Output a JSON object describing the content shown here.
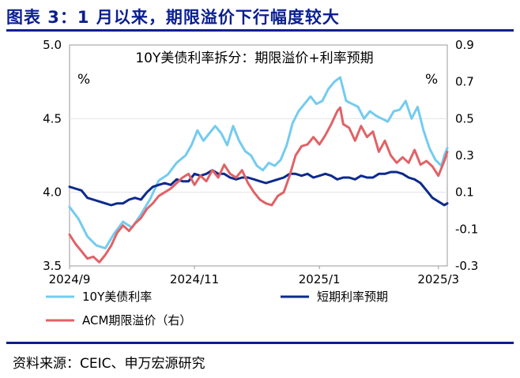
{
  "figure_title": "图表 3：1 月以来，期限溢价下行幅度较大",
  "source": "资料来源：CEIC、申万宏源研究",
  "colors": {
    "brand": "#0a1f8f",
    "ten_year": "#74cbef",
    "short_rate": "#0b2a8c",
    "acm": "#e06266"
  },
  "chart_data": {
    "type": "line",
    "title": "10Y美债利率拆分：期限溢价+利率预期",
    "left_unit": "%",
    "right_unit": "%",
    "x_ticks": [
      "2024/9",
      "2024/11",
      "2025/1",
      "2025/3"
    ],
    "x_tick_index": [
      0,
      42,
      84,
      124
    ],
    "y_left": {
      "min": 3.5,
      "max": 5.0,
      "ticks": [
        "5.0",
        "4.5",
        "4.0",
        "3.5"
      ],
      "tick_values": [
        5.0,
        4.5,
        4.0,
        3.5
      ]
    },
    "y_right": {
      "min": -0.3,
      "max": 0.9,
      "ticks": [
        "0.9",
        "0.7",
        "0.5",
        "0.3",
        "0.1",
        "-0.1",
        "-0.3"
      ],
      "tick_values": [
        0.9,
        0.7,
        0.5,
        0.3,
        0.1,
        -0.1,
        -0.3
      ]
    },
    "series": [
      {
        "name": "10Y美债利率",
        "axis": "left",
        "color": "#74cbef",
        "anchors": [
          [
            0,
            3.9
          ],
          [
            3,
            3.82
          ],
          [
            6,
            3.7
          ],
          [
            9,
            3.64
          ],
          [
            12,
            3.62
          ],
          [
            15,
            3.72
          ],
          [
            18,
            3.8
          ],
          [
            21,
            3.76
          ],
          [
            24,
            3.85
          ],
          [
            27,
            3.95
          ],
          [
            30,
            4.08
          ],
          [
            33,
            4.12
          ],
          [
            36,
            4.2
          ],
          [
            39,
            4.25
          ],
          [
            41,
            4.32
          ],
          [
            43,
            4.42
          ],
          [
            45,
            4.35
          ],
          [
            47,
            4.4
          ],
          [
            49,
            4.45
          ],
          [
            51,
            4.4
          ],
          [
            53,
            4.32
          ],
          [
            55,
            4.45
          ],
          [
            57,
            4.35
          ],
          [
            59,
            4.28
          ],
          [
            61,
            4.25
          ],
          [
            63,
            4.18
          ],
          [
            65,
            4.15
          ],
          [
            67,
            4.2
          ],
          [
            69,
            4.18
          ],
          [
            71,
            4.22
          ],
          [
            73,
            4.32
          ],
          [
            75,
            4.47
          ],
          [
            77,
            4.55
          ],
          [
            79,
            4.6
          ],
          [
            81,
            4.65
          ],
          [
            83,
            4.6
          ],
          [
            85,
            4.62
          ],
          [
            87,
            4.7
          ],
          [
            89,
            4.75
          ],
          [
            91,
            4.78
          ],
          [
            93,
            4.62
          ],
          [
            95,
            4.6
          ],
          [
            97,
            4.58
          ],
          [
            99,
            4.5
          ],
          [
            101,
            4.55
          ],
          [
            103,
            4.52
          ],
          [
            105,
            4.5
          ],
          [
            107,
            4.48
          ],
          [
            109,
            4.55
          ],
          [
            111,
            4.56
          ],
          [
            113,
            4.62
          ],
          [
            115,
            4.5
          ],
          [
            117,
            4.58
          ],
          [
            119,
            4.42
          ],
          [
            121,
            4.3
          ],
          [
            123,
            4.22
          ],
          [
            125,
            4.18
          ],
          [
            126,
            4.25
          ],
          [
            127,
            4.3
          ]
        ]
      },
      {
        "name": "短期利率预期",
        "axis": "right",
        "color": "#0b2a8c",
        "anchors": [
          [
            0,
            0.13
          ],
          [
            2,
            0.12
          ],
          [
            4,
            0.11
          ],
          [
            6,
            0.07
          ],
          [
            8,
            0.06
          ],
          [
            10,
            0.05
          ],
          [
            12,
            0.04
          ],
          [
            14,
            0.03
          ],
          [
            16,
            0.04
          ],
          [
            18,
            0.04
          ],
          [
            20,
            0.06
          ],
          [
            22,
            0.07
          ],
          [
            24,
            0.06
          ],
          [
            26,
            0.1
          ],
          [
            28,
            0.13
          ],
          [
            30,
            0.14
          ],
          [
            32,
            0.15
          ],
          [
            34,
            0.14
          ],
          [
            36,
            0.17
          ],
          [
            38,
            0.16
          ],
          [
            40,
            0.16
          ],
          [
            42,
            0.2
          ],
          [
            44,
            0.19
          ],
          [
            46,
            0.2
          ],
          [
            48,
            0.22
          ],
          [
            50,
            0.2
          ],
          [
            52,
            0.2
          ],
          [
            54,
            0.18
          ],
          [
            56,
            0.17
          ],
          [
            58,
            0.18
          ],
          [
            60,
            0.18
          ],
          [
            62,
            0.17
          ],
          [
            64,
            0.16
          ],
          [
            66,
            0.15
          ],
          [
            68,
            0.16
          ],
          [
            70,
            0.17
          ],
          [
            72,
            0.18
          ],
          [
            74,
            0.2
          ],
          [
            76,
            0.2
          ],
          [
            78,
            0.19
          ],
          [
            80,
            0.2
          ],
          [
            82,
            0.18
          ],
          [
            84,
            0.19
          ],
          [
            86,
            0.2
          ],
          [
            88,
            0.19
          ],
          [
            90,
            0.17
          ],
          [
            92,
            0.18
          ],
          [
            94,
            0.18
          ],
          [
            96,
            0.17
          ],
          [
            98,
            0.19
          ],
          [
            100,
            0.18
          ],
          [
            102,
            0.18
          ],
          [
            104,
            0.2
          ],
          [
            106,
            0.2
          ],
          [
            108,
            0.21
          ],
          [
            110,
            0.21
          ],
          [
            112,
            0.2
          ],
          [
            114,
            0.18
          ],
          [
            116,
            0.17
          ],
          [
            118,
            0.15
          ],
          [
            120,
            0.11
          ],
          [
            122,
            0.07
          ],
          [
            124,
            0.05
          ],
          [
            126,
            0.03
          ],
          [
            127,
            0.04
          ]
        ]
      },
      {
        "name": "ACM期限溢价（右）",
        "axis": "right",
        "color": "#e06266",
        "anchors": [
          [
            0,
            -0.13
          ],
          [
            2,
            -0.18
          ],
          [
            4,
            -0.22
          ],
          [
            6,
            -0.26
          ],
          [
            8,
            -0.25
          ],
          [
            10,
            -0.28
          ],
          [
            12,
            -0.24
          ],
          [
            14,
            -0.19
          ],
          [
            16,
            -0.12
          ],
          [
            18,
            -0.08
          ],
          [
            20,
            -0.11
          ],
          [
            22,
            -0.07
          ],
          [
            24,
            -0.04
          ],
          [
            26,
            0.01
          ],
          [
            28,
            0.04
          ],
          [
            30,
            0.08
          ],
          [
            32,
            0.1
          ],
          [
            34,
            0.12
          ],
          [
            36,
            0.15
          ],
          [
            38,
            0.18
          ],
          [
            40,
            0.2
          ],
          [
            42,
            0.14
          ],
          [
            44,
            0.19
          ],
          [
            46,
            0.16
          ],
          [
            48,
            0.22
          ],
          [
            50,
            0.18
          ],
          [
            52,
            0.25
          ],
          [
            54,
            0.2
          ],
          [
            56,
            0.18
          ],
          [
            58,
            0.22
          ],
          [
            60,
            0.15
          ],
          [
            62,
            0.1
          ],
          [
            64,
            0.06
          ],
          [
            66,
            0.04
          ],
          [
            68,
            0.03
          ],
          [
            70,
            0.08
          ],
          [
            72,
            0.1
          ],
          [
            74,
            0.19
          ],
          [
            76,
            0.3
          ],
          [
            78,
            0.35
          ],
          [
            80,
            0.36
          ],
          [
            82,
            0.4
          ],
          [
            84,
            0.36
          ],
          [
            86,
            0.41
          ],
          [
            88,
            0.47
          ],
          [
            90,
            0.54
          ],
          [
            91,
            0.56
          ],
          [
            92,
            0.47
          ],
          [
            94,
            0.45
          ],
          [
            96,
            0.38
          ],
          [
            98,
            0.46
          ],
          [
            100,
            0.4
          ],
          [
            102,
            0.43
          ],
          [
            104,
            0.32
          ],
          [
            106,
            0.38
          ],
          [
            108,
            0.3
          ],
          [
            110,
            0.26
          ],
          [
            112,
            0.29
          ],
          [
            114,
            0.26
          ],
          [
            116,
            0.33
          ],
          [
            118,
            0.25
          ],
          [
            120,
            0.27
          ],
          [
            122,
            0.24
          ],
          [
            124,
            0.19
          ],
          [
            126,
            0.27
          ],
          [
            127,
            0.32
          ]
        ]
      }
    ]
  }
}
